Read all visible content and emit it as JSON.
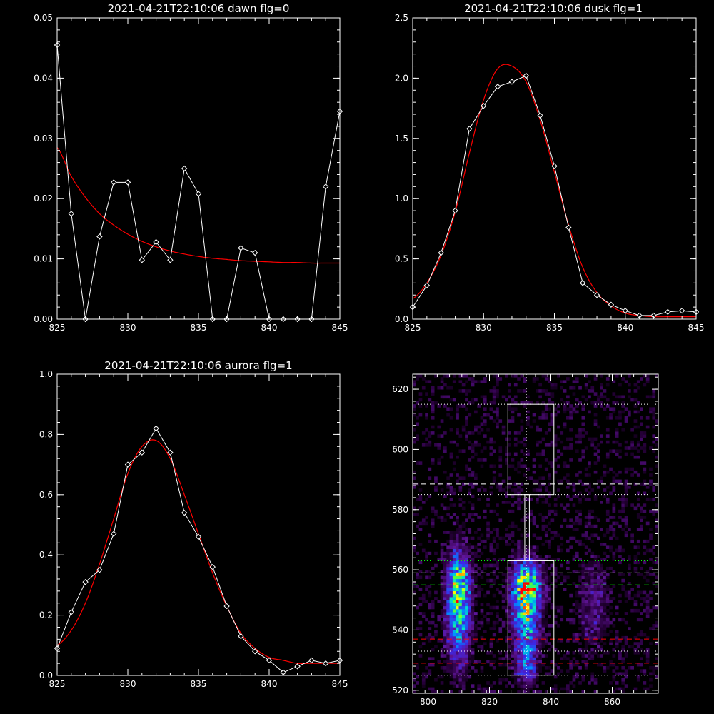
{
  "chart_data": [
    {
      "type": "line",
      "title": "2021-04-21T22:10:06 dawn flg=0",
      "xlim": [
        825,
        845
      ],
      "ylim": [
        0,
        0.05
      ],
      "xticks": [
        "825",
        "830",
        "835",
        "840",
        "845"
      ],
      "yticks": [
        "0.00",
        "0.01",
        "0.02",
        "0.03",
        "0.04",
        "0.05"
      ],
      "series": [
        {
          "kind": "data",
          "color": "#ffffff",
          "marker": "diamond",
          "x": [
            825,
            826,
            827,
            828,
            829,
            830,
            831,
            832,
            833,
            834,
            835,
            836,
            837,
            838,
            839,
            840,
            841,
            842,
            843,
            844,
            845
          ],
          "y": [
            0.0455,
            0.0175,
            0.0,
            0.0137,
            0.0227,
            0.0227,
            0.0098,
            0.0128,
            0.0098,
            0.025,
            0.0208,
            0.0,
            0.0,
            0.0118,
            0.011,
            0.0,
            0.0,
            0.0,
            0.0,
            0.022,
            0.0345
          ]
        },
        {
          "kind": "fit",
          "color": "#ff0000",
          "x": [
            825,
            826,
            827,
            828,
            829,
            830,
            831,
            832,
            833,
            834,
            835,
            836,
            837,
            838,
            839,
            840,
            841,
            842,
            843,
            844,
            845
          ],
          "y": [
            0.0285,
            0.0237,
            0.0202,
            0.0175,
            0.0156,
            0.0141,
            0.0129,
            0.012,
            0.0113,
            0.0108,
            0.0104,
            0.0101,
            0.0099,
            0.0097,
            0.0096,
            0.0095,
            0.0094,
            0.0094,
            0.0093,
            0.0093,
            0.0093
          ]
        }
      ]
    },
    {
      "type": "line",
      "title": "2021-04-21T22:10:06 dusk flg=1",
      "xlim": [
        825,
        845
      ],
      "ylim": [
        0,
        2.5
      ],
      "xticks": [
        "825",
        "830",
        "835",
        "840",
        "845"
      ],
      "yticks": [
        "0.0",
        "0.5",
        "1.0",
        "1.5",
        "2.0",
        "2.5"
      ],
      "series": [
        {
          "kind": "data",
          "color": "#ffffff",
          "marker": "diamond",
          "x": [
            825,
            826,
            827,
            828,
            829,
            830,
            831,
            832,
            833,
            834,
            835,
            836,
            837,
            838,
            839,
            840,
            841,
            842,
            843,
            844,
            845
          ],
          "y": [
            0.1,
            0.28,
            0.55,
            0.9,
            1.58,
            1.77,
            1.93,
            1.97,
            2.02,
            1.69,
            1.27,
            0.76,
            0.3,
            0.2,
            0.12,
            0.07,
            0.03,
            0.03,
            0.06,
            0.07,
            0.06
          ]
        },
        {
          "kind": "fit",
          "color": "#ff0000",
          "x": [
            825,
            826,
            827,
            828,
            829,
            830,
            831,
            832,
            833,
            834,
            835,
            836,
            837,
            838,
            839,
            840,
            841,
            842,
            843,
            844,
            845
          ],
          "y": [
            0.17,
            0.3,
            0.53,
            0.89,
            1.38,
            1.82,
            2.08,
            2.1,
            1.97,
            1.65,
            1.22,
            0.78,
            0.43,
            0.22,
            0.11,
            0.05,
            0.03,
            0.02,
            0.02,
            0.02,
            0.02
          ]
        }
      ]
    },
    {
      "type": "line",
      "title": "2021-04-21T22:10:06 aurora flg=1",
      "xlim": [
        825,
        845
      ],
      "ylim": [
        0,
        1.0
      ],
      "xticks": [
        "825",
        "830",
        "835",
        "840",
        "845"
      ],
      "yticks": [
        "0.0",
        "0.2",
        "0.4",
        "0.6",
        "0.8",
        "1.0"
      ],
      "series": [
        {
          "kind": "data",
          "color": "#ffffff",
          "marker": "diamond",
          "x": [
            825,
            826,
            827,
            828,
            829,
            830,
            831,
            832,
            833,
            834,
            835,
            836,
            837,
            838,
            839,
            840,
            841,
            842,
            843,
            844,
            845
          ],
          "y": [
            0.09,
            0.21,
            0.31,
            0.35,
            0.47,
            0.7,
            0.74,
            0.82,
            0.74,
            0.54,
            0.46,
            0.36,
            0.23,
            0.13,
            0.08,
            0.05,
            0.01,
            0.03,
            0.05,
            0.04,
            0.05
          ]
        },
        {
          "kind": "fit",
          "color": "#ff0000",
          "x": [
            825,
            826,
            827,
            828,
            829,
            830,
            831,
            832,
            833,
            834,
            835,
            836,
            837,
            838,
            839,
            840,
            841,
            842,
            843,
            844,
            845
          ],
          "y": [
            0.1,
            0.15,
            0.24,
            0.37,
            0.52,
            0.67,
            0.76,
            0.78,
            0.72,
            0.6,
            0.47,
            0.34,
            0.23,
            0.14,
            0.09,
            0.06,
            0.05,
            0.04,
            0.04,
            0.04,
            0.04
          ]
        }
      ]
    },
    {
      "type": "heatmap",
      "title": "",
      "xlim": [
        795,
        875
      ],
      "ylim": [
        519,
        625
      ],
      "xticks": [
        "800",
        "820",
        "840",
        "860"
      ],
      "yticks": [
        "520",
        "540",
        "560",
        "580",
        "600",
        "620"
      ],
      "blobs": [
        {
          "x": 810,
          "y": 548,
          "sx": 2.6,
          "sy": 12,
          "amp": 0.62
        },
        {
          "x": 810,
          "y": 557,
          "sx": 2.0,
          "sy": 4,
          "amp": 0.3
        },
        {
          "x": 832,
          "y": 554,
          "sx": 3.2,
          "sy": 6,
          "amp": 0.7
        },
        {
          "x": 832,
          "y": 541,
          "sx": 2.8,
          "sy": 9,
          "amp": 0.45
        },
        {
          "x": 832,
          "y": 528,
          "sx": 2.0,
          "sy": 4,
          "amp": 0.25
        },
        {
          "x": 854,
          "y": 548,
          "sx": 3.5,
          "sy": 10,
          "amp": 0.16
        }
      ],
      "vline": {
        "x": 832,
        "color": "#ffffff",
        "style": "dotted"
      },
      "hlines": [
        {
          "y": 615,
          "color": "#ffffff",
          "style": "dotted"
        },
        {
          "y": 588.5,
          "color": "#ffffff",
          "style": "dashed"
        },
        {
          "y": 585,
          "color": "#ffffff",
          "style": "dotted"
        },
        {
          "y": 563,
          "color": "#00ff00",
          "style": "dotted"
        },
        {
          "y": 559,
          "color": "#ffffff",
          "style": "dashed"
        },
        {
          "y": 555,
          "color": "#00ff00",
          "style": "dashed"
        },
        {
          "y": 537,
          "color": "#ff0000",
          "style": "dashed"
        },
        {
          "y": 533,
          "color": "#ffffff",
          "style": "dotted"
        },
        {
          "y": 529,
          "color": "#ff0000",
          "style": "dashed"
        },
        {
          "y": 525,
          "color": "#ffffff",
          "style": "dotted"
        }
      ],
      "boxes": [
        {
          "x0": 826,
          "x1": 841,
          "y0": 585,
          "y1": 615,
          "color": "#ffffff"
        },
        {
          "x0": 826,
          "x1": 841,
          "y0": 525,
          "y1": 563,
          "color": "#ffffff"
        },
        {
          "x0": 831.5,
          "x1": 833,
          "y0": 563,
          "y1": 585,
          "color": "#ffffff"
        }
      ]
    }
  ]
}
